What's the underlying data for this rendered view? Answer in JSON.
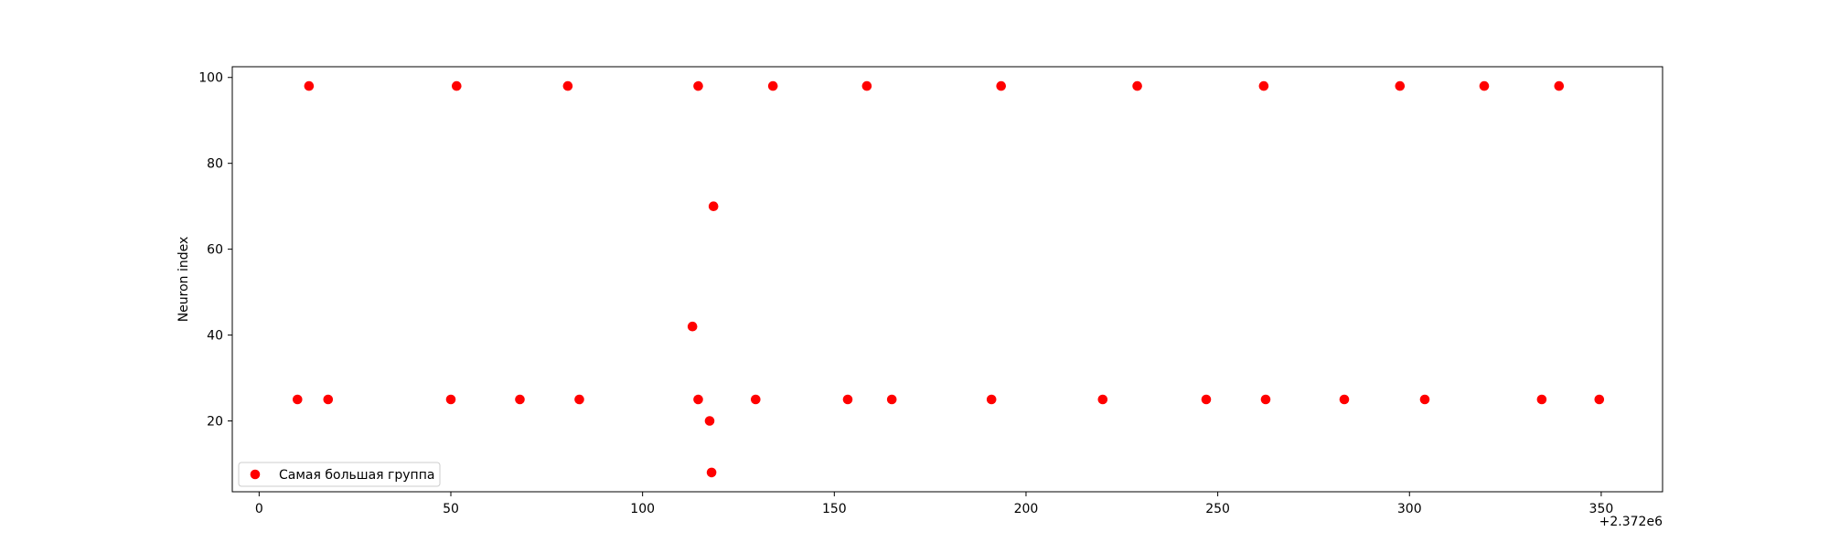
{
  "chart_data": {
    "type": "scatter",
    "title": "",
    "xlabel": "",
    "ylabel": "Neuron index",
    "x_offset_label": "+2.372e6",
    "xlim": [
      -7,
      366
    ],
    "ylim": [
      3.5,
      102.5
    ],
    "x_ticks": [
      0,
      50,
      100,
      150,
      200,
      250,
      300,
      350
    ],
    "x_tick_labels": [
      "0",
      "50",
      "100",
      "150",
      "200",
      "250",
      "300",
      "350"
    ],
    "y_ticks": [
      20,
      40,
      60,
      80,
      100
    ],
    "y_tick_labels": [
      "20",
      "40",
      "60",
      "80",
      "100"
    ],
    "grid": false,
    "legend_position": "lower-left",
    "series": [
      {
        "name": "Самая большая группа",
        "color": "#ff0000",
        "points": [
          {
            "x": 13,
            "y": 98
          },
          {
            "x": 51.5,
            "y": 98
          },
          {
            "x": 80.5,
            "y": 98
          },
          {
            "x": 114.5,
            "y": 98
          },
          {
            "x": 134,
            "y": 98
          },
          {
            "x": 158.5,
            "y": 98
          },
          {
            "x": 193.5,
            "y": 98
          },
          {
            "x": 229,
            "y": 98
          },
          {
            "x": 262,
            "y": 98
          },
          {
            "x": 297.5,
            "y": 98
          },
          {
            "x": 319.5,
            "y": 98
          },
          {
            "x": 339,
            "y": 98
          },
          {
            "x": 118.5,
            "y": 70
          },
          {
            "x": 113,
            "y": 42
          },
          {
            "x": 117.5,
            "y": 20
          },
          {
            "x": 118,
            "y": 8
          },
          {
            "x": 10,
            "y": 25
          },
          {
            "x": 18,
            "y": 25
          },
          {
            "x": 50,
            "y": 25
          },
          {
            "x": 68,
            "y": 25
          },
          {
            "x": 83.5,
            "y": 25
          },
          {
            "x": 114.5,
            "y": 25
          },
          {
            "x": 129.5,
            "y": 25
          },
          {
            "x": 153.5,
            "y": 25
          },
          {
            "x": 165,
            "y": 25
          },
          {
            "x": 191,
            "y": 25
          },
          {
            "x": 220,
            "y": 25
          },
          {
            "x": 247,
            "y": 25
          },
          {
            "x": 262.5,
            "y": 25
          },
          {
            "x": 283,
            "y": 25
          },
          {
            "x": 304,
            "y": 25
          },
          {
            "x": 334.5,
            "y": 25
          },
          {
            "x": 349.5,
            "y": 25
          }
        ]
      }
    ]
  }
}
